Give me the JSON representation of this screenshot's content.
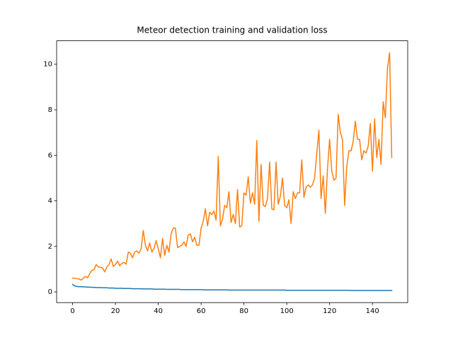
{
  "chart_data": {
    "type": "line",
    "title": "Meteor detection training and validation loss",
    "x": [
      0,
      1,
      2,
      3,
      4,
      5,
      6,
      7,
      8,
      9,
      10,
      11,
      12,
      13,
      14,
      15,
      16,
      17,
      18,
      19,
      20,
      21,
      22,
      23,
      24,
      25,
      26,
      27,
      28,
      29,
      30,
      31,
      32,
      33,
      34,
      35,
      36,
      37,
      38,
      39,
      40,
      41,
      42,
      43,
      44,
      45,
      46,
      47,
      48,
      49,
      50,
      51,
      52,
      53,
      54,
      55,
      56,
      57,
      58,
      59,
      60,
      61,
      62,
      63,
      64,
      65,
      66,
      67,
      68,
      69,
      70,
      71,
      72,
      73,
      74,
      75,
      76,
      77,
      78,
      79,
      80,
      81,
      82,
      83,
      84,
      85,
      86,
      87,
      88,
      89,
      90,
      91,
      92,
      93,
      94,
      95,
      96,
      97,
      98,
      99,
      100,
      101,
      102,
      103,
      104,
      105,
      106,
      107,
      108,
      109,
      110,
      111,
      112,
      113,
      114,
      115,
      116,
      117,
      118,
      119,
      120,
      121,
      122,
      123,
      124,
      125,
      126,
      127,
      128,
      129,
      130,
      131,
      132,
      133,
      134,
      135,
      136,
      137,
      138,
      139,
      140,
      141,
      142,
      143,
      144,
      145,
      146,
      147,
      148,
      149
    ],
    "series": [
      {
        "color": "#1f77b4",
        "values": [
          0.33,
          0.26,
          0.24,
          0.23,
          0.23,
          0.22,
          0.22,
          0.21,
          0.21,
          0.2,
          0.2,
          0.19,
          0.19,
          0.19,
          0.18,
          0.18,
          0.18,
          0.17,
          0.17,
          0.17,
          0.16,
          0.16,
          0.16,
          0.16,
          0.15,
          0.15,
          0.15,
          0.15,
          0.14,
          0.14,
          0.14,
          0.14,
          0.14,
          0.13,
          0.13,
          0.13,
          0.13,
          0.13,
          0.12,
          0.12,
          0.12,
          0.12,
          0.12,
          0.12,
          0.11,
          0.11,
          0.11,
          0.11,
          0.11,
          0.11,
          0.11,
          0.1,
          0.1,
          0.1,
          0.1,
          0.1,
          0.1,
          0.1,
          0.1,
          0.1,
          0.1,
          0.09,
          0.09,
          0.09,
          0.09,
          0.09,
          0.09,
          0.09,
          0.09,
          0.09,
          0.09,
          0.09,
          0.09,
          0.08,
          0.08,
          0.08,
          0.08,
          0.08,
          0.08,
          0.08,
          0.08,
          0.08,
          0.08,
          0.08,
          0.08,
          0.08,
          0.08,
          0.08,
          0.08,
          0.08,
          0.08,
          0.08,
          0.08,
          0.08,
          0.08,
          0.08,
          0.08,
          0.08,
          0.08,
          0.08,
          0.07,
          0.07,
          0.07,
          0.07,
          0.07,
          0.07,
          0.07,
          0.07,
          0.07,
          0.07,
          0.07,
          0.07,
          0.07,
          0.07,
          0.07,
          0.07,
          0.07,
          0.07,
          0.07,
          0.07,
          0.07,
          0.07,
          0.07,
          0.07,
          0.07,
          0.07,
          0.07,
          0.07,
          0.07,
          0.07,
          0.06,
          0.06,
          0.06,
          0.06,
          0.06,
          0.06,
          0.06,
          0.06,
          0.06,
          0.06,
          0.06,
          0.06,
          0.06,
          0.06,
          0.06,
          0.06,
          0.06,
          0.06,
          0.06,
          0.06
        ]
      },
      {
        "color": "#ff7f0e",
        "values": [
          0.6,
          0.6,
          0.58,
          0.57,
          0.52,
          0.6,
          0.68,
          0.62,
          0.8,
          0.95,
          0.97,
          1.2,
          1.1,
          1.08,
          1.05,
          0.88,
          1.1,
          1.2,
          1.45,
          1.12,
          1.2,
          1.35,
          1.15,
          1.25,
          1.3,
          1.22,
          1.75,
          1.7,
          1.5,
          1.75,
          1.8,
          1.7,
          1.9,
          2.7,
          2.05,
          1.8,
          2.15,
          1.75,
          1.9,
          2.25,
          1.9,
          1.5,
          2.35,
          1.6,
          2.05,
          1.75,
          2.55,
          2.8,
          2.8,
          1.95,
          2.0,
          2.05,
          2.2,
          2.0,
          2.5,
          2.55,
          2.2,
          2.4,
          2.05,
          2.05,
          2.8,
          3.1,
          3.65,
          2.9,
          3.5,
          3.4,
          3.55,
          3.15,
          5.95,
          2.9,
          3.2,
          3.8,
          3.7,
          4.4,
          3.05,
          3.4,
          3.0,
          4.5,
          2.85,
          2.9,
          4.35,
          4.25,
          5.05,
          3.9,
          4.35,
          3.85,
          6.65,
          3.1,
          5.6,
          3.8,
          3.75,
          4.1,
          5.7,
          3.65,
          3.6,
          5.7,
          3.85,
          4.2,
          5.0,
          3.8,
          3.7,
          4.05,
          3.0,
          4.4,
          4.1,
          4.35,
          4.35,
          5.8,
          4.15,
          4.6,
          4.7,
          4.6,
          4.7,
          5.0,
          6.1,
          7.1,
          4.1,
          5.1,
          3.45,
          5.4,
          6.7,
          5.3,
          4.9,
          5.0,
          7.8,
          7.0,
          6.7,
          3.8,
          5.5,
          6.2,
          6.2,
          6.6,
          7.5,
          6.7,
          6.7,
          5.8,
          6.2,
          6.1,
          6.4,
          7.4,
          5.3,
          7.6,
          5.9,
          6.7,
          5.6,
          8.35,
          7.65,
          9.8,
          10.5,
          5.9
        ]
      }
    ],
    "xlim": [
      -7.45,
      156.45
    ],
    "ylim": [
      -0.47,
      11.03
    ],
    "xticks": [
      0,
      20,
      40,
      60,
      80,
      100,
      120,
      140
    ],
    "yticks": [
      0,
      2,
      4,
      6,
      8,
      10
    ]
  }
}
